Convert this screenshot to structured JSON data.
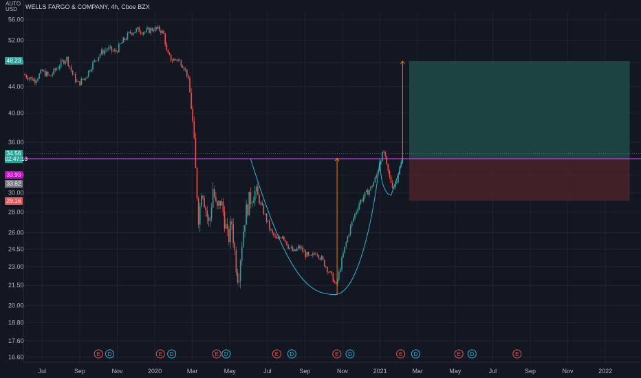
{
  "header": {
    "title": "WELLS FARGO & COMPANY, 4h, Cboe BZX",
    "scale_label_top": "AUTO",
    "scale_label_bottom": "USD"
  },
  "price_tags": [
    {
      "label": "48.23",
      "price": 48.23,
      "color": "#26a69a"
    },
    {
      "label": "34.56",
      "price": 34.56,
      "color": "#26a69a"
    },
    {
      "label": "02:47:13",
      "price": 33.9,
      "color": "#26a69a"
    },
    {
      "label": "33.93",
      "price": 32.0,
      "color": "#d100d1"
    },
    {
      "label": "33.82",
      "price": 31.0,
      "color": "#787b86"
    },
    {
      "label": "29.16",
      "price": 29.16,
      "color": "#ef5350"
    }
  ],
  "colors": {
    "up": "#26a69a",
    "down": "#ef5350",
    "resistance": "#e040fb",
    "cup_curve": "#2bb6d6",
    "measure_arrow": "#f57c00",
    "profit_zone": "#1f4a46",
    "loss_zone": "#4a2328",
    "grid": "#1f2430",
    "event_e": "#ef5350",
    "event_d": "#2bb6d6"
  },
  "events": [
    {
      "type": "E",
      "t": 4.0
    },
    {
      "type": "D",
      "t": 4.6
    },
    {
      "type": "E",
      "t": 7.3
    },
    {
      "type": "D",
      "t": 7.9
    },
    {
      "type": "E",
      "t": 10.3
    },
    {
      "type": "D",
      "t": 10.8
    },
    {
      "type": "E",
      "t": 13.5
    },
    {
      "type": "D",
      "t": 14.3
    },
    {
      "type": "E",
      "t": 16.7
    },
    {
      "type": "D",
      "t": 17.4
    },
    {
      "type": "E",
      "t": 20.1
    },
    {
      "type": "D",
      "t": 20.9
    },
    {
      "type": "E",
      "t": 23.2
    },
    {
      "type": "D",
      "t": 23.9
    },
    {
      "type": "E",
      "t": 26.3
    }
  ],
  "chart_data": {
    "type": "candlestick",
    "symbol": "WELLS FARGO & COMPANY",
    "interval": "4h",
    "exchange": "Cboe BZX",
    "y_scale": "log",
    "ylim": [
      16.3,
      57.5
    ],
    "y_ticks": [
      "56.00",
      "52.00",
      "48.00",
      "44.00",
      "40.00",
      "36.00",
      "32.00",
      "30.00",
      "28.00",
      "26.00",
      "24.50",
      "23.00",
      "21.50",
      "20.00",
      "18.80",
      "17.60",
      "16.60"
    ],
    "y_tick_values": [
      56,
      52,
      48,
      44,
      40,
      36,
      32,
      30,
      28,
      26,
      24.5,
      23,
      21.5,
      20,
      18.8,
      17.6,
      16.6
    ],
    "x_ticks": [
      "Jul",
      "Sep",
      "Nov",
      "2020",
      "Mar",
      "May",
      "Jul",
      "Sep",
      "Nov",
      "2021",
      "Mar",
      "May",
      "Jul",
      "Sep",
      "Nov",
      "2022"
    ],
    "x_tick_months": [
      1,
      3,
      5,
      7,
      9,
      11,
      13,
      15,
      17,
      19,
      21,
      23,
      25,
      27,
      29,
      31
    ],
    "x_range_months": [
      0.0,
      32.9
    ],
    "x_unit": "months since Jun 2019",
    "price_path": [
      [
        0.0,
        46.0
      ],
      [
        0.6,
        45.0
      ],
      [
        1.0,
        46.5
      ],
      [
        1.4,
        45.6
      ],
      [
        1.9,
        47.5
      ],
      [
        2.3,
        48.8
      ],
      [
        2.6,
        46.2
      ],
      [
        2.9,
        44.4
      ],
      [
        3.3,
        45.5
      ],
      [
        3.7,
        47.8
      ],
      [
        4.1,
        49.6
      ],
      [
        4.5,
        50.5
      ],
      [
        4.9,
        49.8
      ],
      [
        5.3,
        51.8
      ],
      [
        5.7,
        53.5
      ],
      [
        6.1,
        54.0
      ],
      [
        6.5,
        53.6
      ],
      [
        6.9,
        54.2
      ],
      [
        7.3,
        54.0
      ],
      [
        7.5,
        53.0
      ],
      [
        7.65,
        49.5
      ],
      [
        7.9,
        48.4
      ],
      [
        8.2,
        48.6
      ],
      [
        8.5,
        47.6
      ],
      [
        8.75,
        45.8
      ],
      [
        8.95,
        41.0
      ],
      [
        9.05,
        37.5
      ],
      [
        9.15,
        33.2
      ],
      [
        9.25,
        30.0
      ],
      [
        9.35,
        27.0
      ],
      [
        9.5,
        31.0
      ],
      [
        9.7,
        28.5
      ],
      [
        9.9,
        26.5
      ],
      [
        10.1,
        30.5
      ],
      [
        10.3,
        28.0
      ],
      [
        10.5,
        29.2
      ],
      [
        10.7,
        27.5
      ],
      [
        10.9,
        25.2
      ],
      [
        11.1,
        27.0
      ],
      [
        11.3,
        23.5
      ],
      [
        11.45,
        22.0
      ],
      [
        11.6,
        24.5
      ],
      [
        11.8,
        27.5
      ],
      [
        12.0,
        29.0
      ],
      [
        12.3,
        30.2
      ],
      [
        12.6,
        29.0
      ],
      [
        12.9,
        27.5
      ],
      [
        13.2,
        26.0
      ],
      [
        13.5,
        25.3
      ],
      [
        13.8,
        25.8
      ],
      [
        14.1,
        24.8
      ],
      [
        14.4,
        24.2
      ],
      [
        14.7,
        24.7
      ],
      [
        15.0,
        24.1
      ],
      [
        15.3,
        23.7
      ],
      [
        15.6,
        24.3
      ],
      [
        15.9,
        23.6
      ],
      [
        16.2,
        22.8
      ],
      [
        16.5,
        22.0
      ],
      [
        16.65,
        21.4
      ],
      [
        16.8,
        22.4
      ],
      [
        17.0,
        23.8
      ],
      [
        17.3,
        25.8
      ],
      [
        17.6,
        27.5
      ],
      [
        17.9,
        29.0
      ],
      [
        18.2,
        29.8
      ],
      [
        18.5,
        30.5
      ],
      [
        18.8,
        31.8
      ],
      [
        19.0,
        33.8
      ],
      [
        19.2,
        34.8
      ],
      [
        19.35,
        33.0
      ],
      [
        19.5,
        31.7
      ],
      [
        19.7,
        30.6
      ],
      [
        19.85,
        31.2
      ],
      [
        20.0,
        32.5
      ],
      [
        20.2,
        33.93
      ]
    ],
    "resistance_level": 33.93,
    "cup_left": [
      12.1,
      33.93
    ],
    "cup_bottom": [
      16.6,
      20.8
    ],
    "cup_right": [
      19.0,
      33.93
    ],
    "handle_bottom": [
      19.6,
      29.8
    ],
    "measured_move": {
      "from_t": 16.6,
      "from": 20.8,
      "to": 34.0
    },
    "target_arrow": {
      "t": 20.2,
      "from": 33.93,
      "to": 48.23
    },
    "position": {
      "t_start": 20.55,
      "t_end": 32.3,
      "entry": 33.93,
      "target": 48.23,
      "stop": 29.16
    },
    "last_price": 33.93
  }
}
